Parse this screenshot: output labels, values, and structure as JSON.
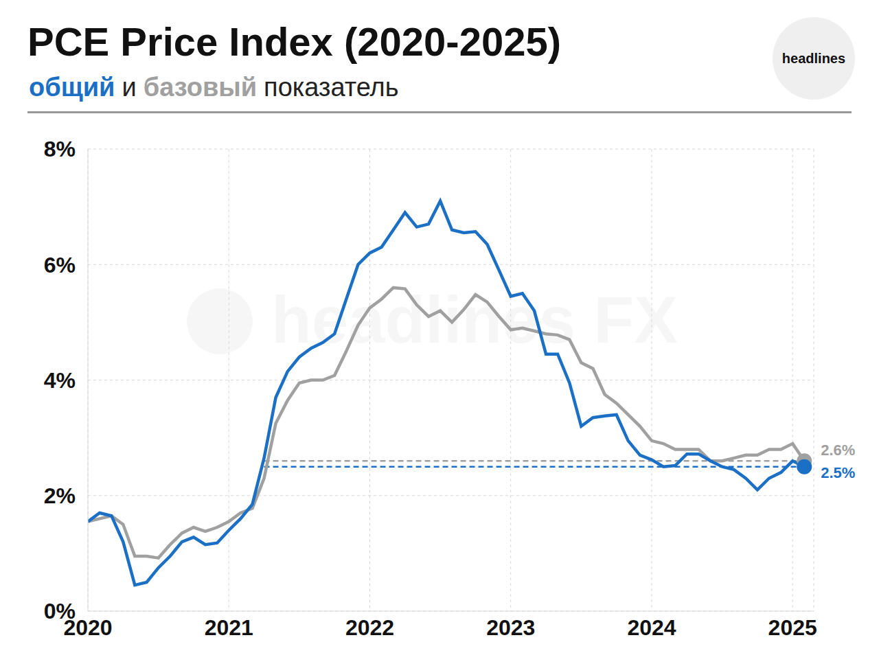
{
  "chart_data": {
    "type": "line",
    "title": "PCE Price Index (2020-2025)",
    "subtitle": "общий и базовый показатель",
    "logo": "headlines",
    "watermark": "headlines FX",
    "grid": true,
    "x": [
      2020,
      2020.083,
      2020.167,
      2020.25,
      2020.333,
      2020.417,
      2020.5,
      2020.583,
      2020.667,
      2020.75,
      2020.833,
      2020.917,
      2021,
      2021.083,
      2021.167,
      2021.25,
      2021.333,
      2021.417,
      2021.5,
      2021.583,
      2021.667,
      2021.75,
      2021.833,
      2021.917,
      2022,
      2022.083,
      2022.167,
      2022.25,
      2022.333,
      2022.417,
      2022.5,
      2022.583,
      2022.667,
      2022.75,
      2022.833,
      2022.917,
      2023,
      2023.083,
      2023.167,
      2023.25,
      2023.333,
      2023.417,
      2023.5,
      2023.583,
      2023.667,
      2023.75,
      2023.833,
      2023.917,
      2024,
      2024.083,
      2024.167,
      2024.25,
      2024.333,
      2024.417,
      2024.5,
      2024.583,
      2024.667,
      2024.75,
      2024.833,
      2024.917,
      2025,
      2025.083
    ],
    "series": [
      {
        "name": "общий",
        "color": "#1b6fc4",
        "values": [
          1.55,
          1.7,
          1.65,
          1.2,
          0.45,
          0.5,
          0.75,
          0.95,
          1.2,
          1.28,
          1.15,
          1.18,
          1.4,
          1.6,
          1.85,
          2.65,
          3.7,
          4.15,
          4.4,
          4.55,
          4.65,
          4.8,
          5.4,
          6.0,
          6.2,
          6.3,
          6.6,
          6.9,
          6.65,
          6.7,
          7.1,
          6.6,
          6.55,
          6.57,
          6.35,
          5.9,
          5.45,
          5.5,
          5.2,
          4.45,
          4.45,
          3.95,
          3.2,
          3.35,
          3.38,
          3.4,
          2.95,
          2.7,
          2.62,
          2.5,
          2.52,
          2.72,
          2.72,
          2.6,
          2.5,
          2.45,
          2.3,
          2.1,
          2.3,
          2.4,
          2.6,
          2.5
        ]
      },
      {
        "name": "базовый",
        "color": "#a0a0a0",
        "values": [
          1.55,
          1.6,
          1.65,
          1.5,
          0.95,
          0.95,
          0.92,
          1.15,
          1.35,
          1.45,
          1.38,
          1.45,
          1.55,
          1.7,
          1.78,
          2.3,
          3.25,
          3.65,
          3.95,
          4.0,
          4.0,
          4.08,
          4.5,
          4.95,
          5.25,
          5.4,
          5.6,
          5.58,
          5.3,
          5.1,
          5.2,
          5.0,
          5.22,
          5.48,
          5.35,
          5.1,
          4.87,
          4.9,
          4.85,
          4.8,
          4.78,
          4.7,
          4.3,
          4.2,
          3.75,
          3.6,
          3.4,
          3.2,
          2.95,
          2.9,
          2.8,
          2.8,
          2.8,
          2.6,
          2.6,
          2.65,
          2.7,
          2.7,
          2.8,
          2.8,
          2.9,
          2.6
        ]
      }
    ],
    "xlim": [
      2020,
      2025.15
    ],
    "xticks": [
      2020,
      2021,
      2022,
      2023,
      2024,
      2025
    ],
    "ylim": [
      0,
      8
    ],
    "yticks": [
      {
        "value": 0,
        "label": "0%"
      },
      {
        "value": 2,
        "label": "2%"
      },
      {
        "value": 4,
        "label": "4%"
      },
      {
        "value": 6,
        "label": "6%"
      },
      {
        "value": 8,
        "label": "8%"
      }
    ],
    "reference_lines": [
      {
        "y": 2.6,
        "x_from": 2021.25,
        "x_to": 2025.083,
        "color": "#a0a0a0"
      },
      {
        "y": 2.5,
        "x_from": 2021.25,
        "x_to": 2025.083,
        "color": "#1b6fc4"
      }
    ],
    "annotations": [
      {
        "x": 2025.083,
        "y": 2.6,
        "label": "2.6%",
        "color": "#a0a0a0"
      },
      {
        "x": 2025.083,
        "y": 2.5,
        "label": "2.5%",
        "color": "#1b6fc4"
      }
    ]
  }
}
